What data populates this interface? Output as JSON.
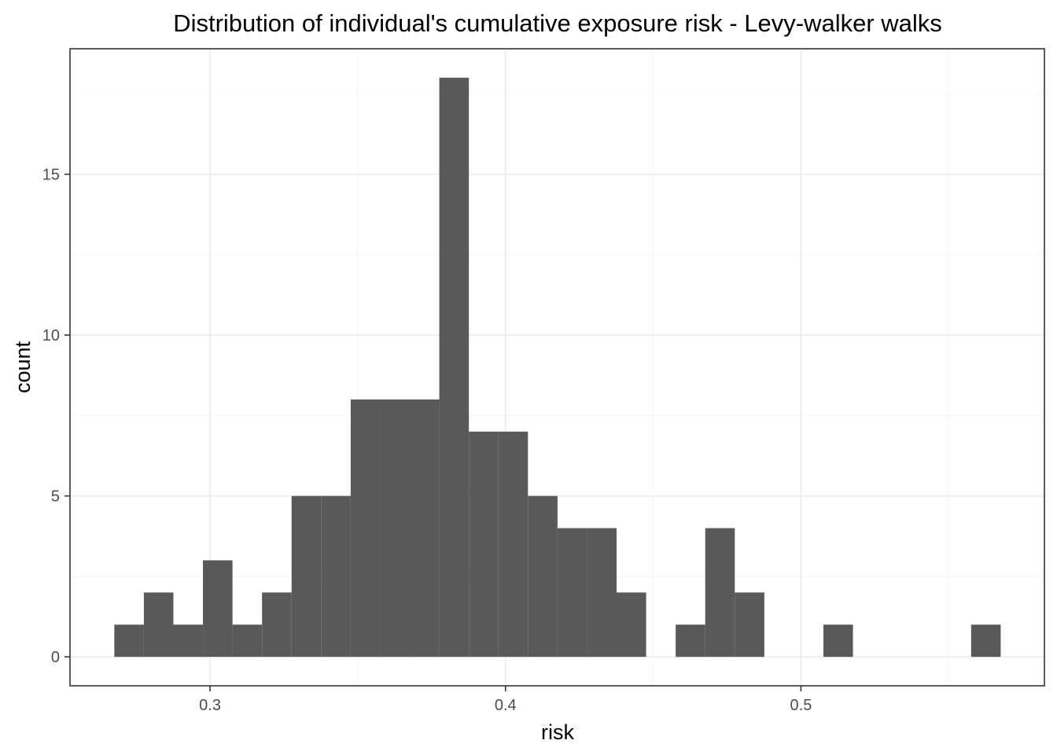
{
  "chart_data": {
    "type": "bar",
    "title": "Distribution of individual's cumulative exposure risk - Levy-walker walks",
    "xlabel": "risk",
    "ylabel": "count",
    "xlim": [
      0.2526,
      0.5824
    ],
    "ylim": [
      -0.9,
      18.9
    ],
    "x_ticks": [
      0.3,
      0.4,
      0.5
    ],
    "x_tick_labels": [
      "0.3",
      "0.4",
      "0.5"
    ],
    "y_ticks": [
      0,
      5,
      10,
      15
    ],
    "y_tick_labels": [
      "0",
      "5",
      "10",
      "15"
    ],
    "grid": true,
    "bins": [
      {
        "x0": 0.2676,
        "x1": 0.2776,
        "count": 1
      },
      {
        "x0": 0.2776,
        "x1": 0.2876,
        "count": 2
      },
      {
        "x0": 0.2876,
        "x1": 0.2976,
        "count": 1
      },
      {
        "x0": 0.2976,
        "x1": 0.3076,
        "count": 3
      },
      {
        "x0": 0.3076,
        "x1": 0.3176,
        "count": 1
      },
      {
        "x0": 0.3176,
        "x1": 0.3276,
        "count": 2
      },
      {
        "x0": 0.3276,
        "x1": 0.3376,
        "count": 5
      },
      {
        "x0": 0.3376,
        "x1": 0.3476,
        "count": 5
      },
      {
        "x0": 0.3476,
        "x1": 0.3576,
        "count": 8
      },
      {
        "x0": 0.3576,
        "x1": 0.3676,
        "count": 8
      },
      {
        "x0": 0.3676,
        "x1": 0.3776,
        "count": 8
      },
      {
        "x0": 0.3776,
        "x1": 0.3876,
        "count": 18
      },
      {
        "x0": 0.3876,
        "x1": 0.3976,
        "count": 7
      },
      {
        "x0": 0.3976,
        "x1": 0.4076,
        "count": 7
      },
      {
        "x0": 0.4076,
        "x1": 0.4176,
        "count": 5
      },
      {
        "x0": 0.4176,
        "x1": 0.4276,
        "count": 4
      },
      {
        "x0": 0.4276,
        "x1": 0.4376,
        "count": 4
      },
      {
        "x0": 0.4376,
        "x1": 0.4476,
        "count": 2
      },
      {
        "x0": 0.4476,
        "x1": 0.4576,
        "count": 0
      },
      {
        "x0": 0.4576,
        "x1": 0.4676,
        "count": 1
      },
      {
        "x0": 0.4676,
        "x1": 0.4776,
        "count": 4
      },
      {
        "x0": 0.4776,
        "x1": 0.4876,
        "count": 2
      },
      {
        "x0": 0.4876,
        "x1": 0.4976,
        "count": 0
      },
      {
        "x0": 0.4976,
        "x1": 0.5076,
        "count": 0
      },
      {
        "x0": 0.5076,
        "x1": 0.5176,
        "count": 1
      },
      {
        "x0": 0.5176,
        "x1": 0.5276,
        "count": 0
      },
      {
        "x0": 0.5276,
        "x1": 0.5376,
        "count": 0
      },
      {
        "x0": 0.5376,
        "x1": 0.5476,
        "count": 0
      },
      {
        "x0": 0.5476,
        "x1": 0.5576,
        "count": 0
      },
      {
        "x0": 0.5576,
        "x1": 0.5676,
        "count": 1
      }
    ],
    "bar_color": "#595959"
  }
}
